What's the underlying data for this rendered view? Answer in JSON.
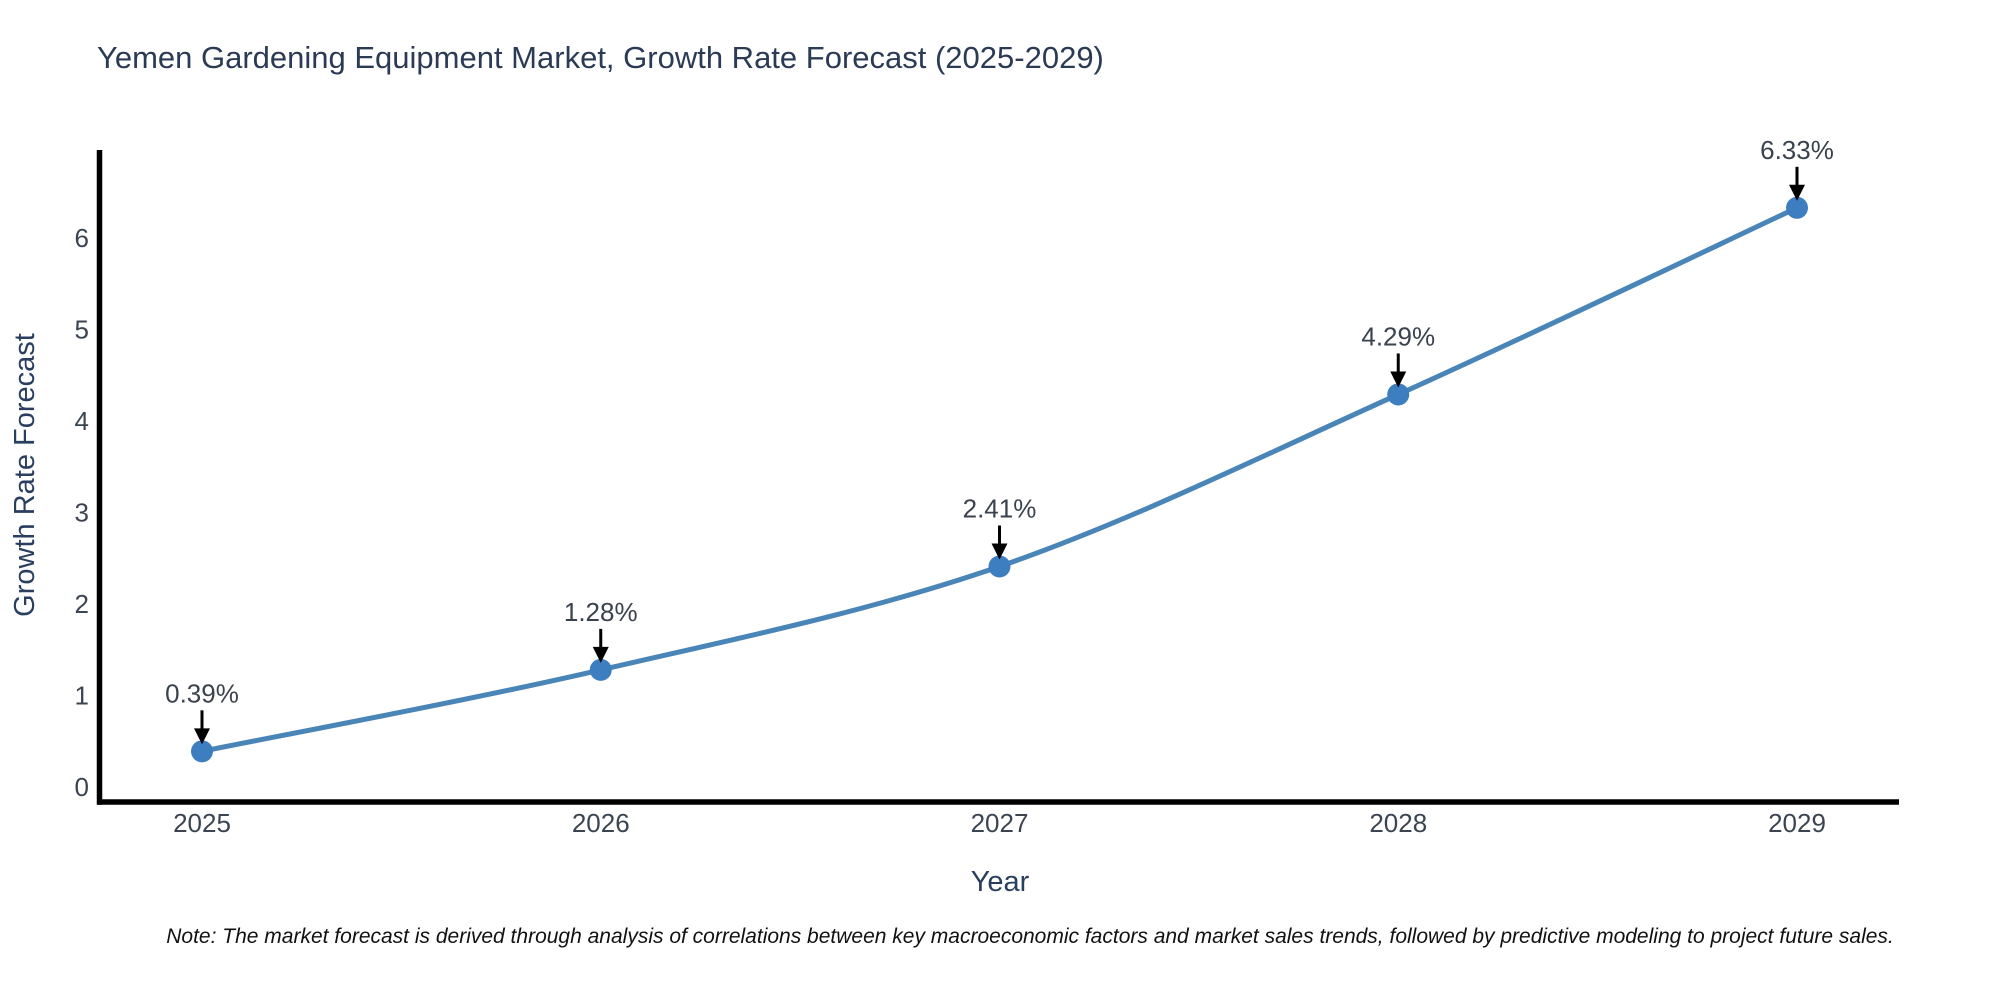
{
  "title": "Yemen Gardening Equipment Market, Growth Rate Forecast (2025-2029)",
  "note": "Note: The market forecast is derived through analysis of correlations between key macroeconomic factors and market sales trends, followed by predictive modeling to project future sales.",
  "chart_data": {
    "type": "line",
    "title": "Yemen Gardening Equipment Market, Growth Rate Forecast (2025-2029)",
    "xlabel": "Year",
    "ylabel": "Growth Rate Forecast",
    "x": [
      "2025",
      "2026",
      "2027",
      "2028",
      "2029"
    ],
    "values": [
      0.39,
      1.28,
      2.41,
      4.29,
      6.33
    ],
    "point_labels": [
      "0.39%",
      "1.28%",
      "2.41%",
      "4.29%",
      "6.33%"
    ],
    "yticks": [
      0,
      1,
      2,
      3,
      4,
      5,
      6
    ],
    "ylim": [
      0,
      6.7
    ],
    "grid": false,
    "legend": "none",
    "annotation_style": "black-arrow-pointing-down-to-marker",
    "colors": {
      "line": "#4a85b8",
      "marker": "#3d7ec1",
      "axis": "#000000",
      "title_text": "#2b3a55",
      "axis_title_text": "#2a3f5f",
      "tick_text": "#3b4552",
      "annotation_text": "#3a424e",
      "arrow": "#000000",
      "note_text": "#111111",
      "background": "#ffffff"
    }
  }
}
